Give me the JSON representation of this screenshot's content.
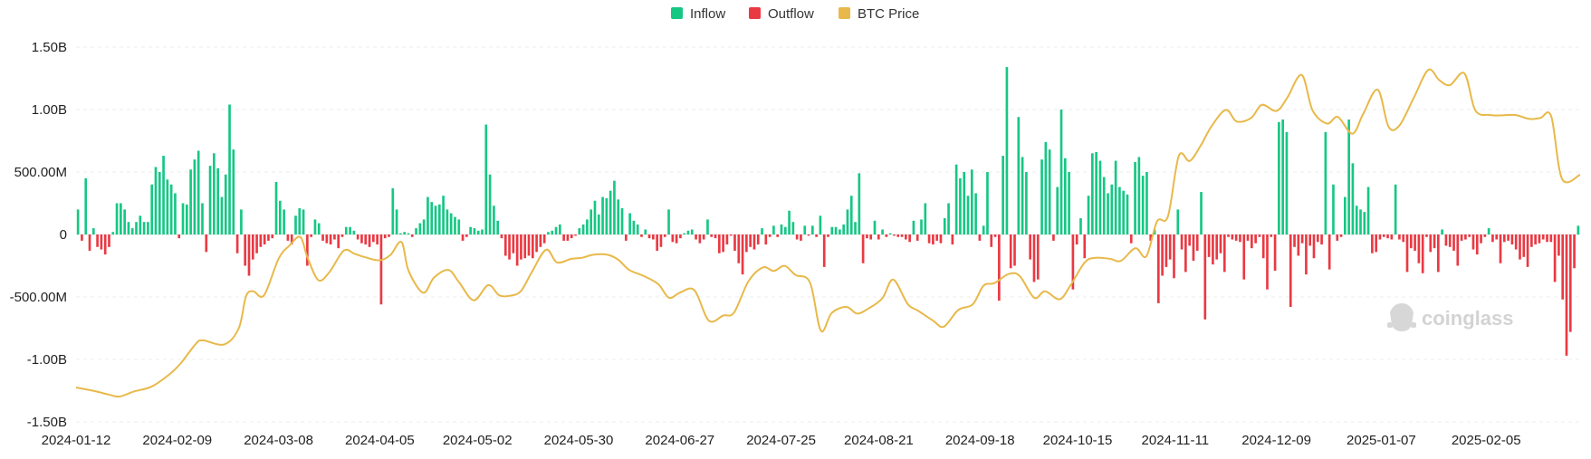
{
  "chart_data": {
    "type": "bar",
    "legend": {
      "placement": "top-center",
      "items": [
        {
          "key": "inflow",
          "label": "Inflow",
          "color": "#16c784"
        },
        {
          "key": "outflow",
          "label": "Outflow",
          "color": "#ea3943"
        },
        {
          "key": "btc_price",
          "label": "BTC Price",
          "color": "#e8b94a"
        }
      ]
    },
    "y_axis": {
      "ylim": [
        -1500000000,
        1500000000
      ],
      "tick_values": [
        1500000000,
        1000000000,
        500000000,
        0,
        -500000000,
        -1000000000,
        -1500000000
      ],
      "tick_labels": [
        "1.50B",
        "1.00B",
        "500.00M",
        "0",
        "-500.00M",
        "-1.00B",
        "-1.50B"
      ]
    },
    "x_axis": {
      "start": "2024-01-12",
      "end": "2025-03-03",
      "tick_labels": [
        "2024-01-12",
        "2024-02-09",
        "2024-03-08",
        "2024-04-05",
        "2024-05-02",
        "2024-05-30",
        "2024-06-27",
        "2024-07-25",
        "2024-08-21",
        "2024-09-18",
        "2024-10-15",
        "2024-11-11",
        "2024-12-09",
        "2025-01-07",
        "2025-02-05"
      ]
    },
    "grid": {
      "horizontal": true,
      "vertical": false
    },
    "watermark": "coinglass",
    "series": [
      {
        "name": "Inflow / Outflow",
        "type": "bar",
        "unit": "USD",
        "values": [
          200,
          -50,
          450,
          -130,
          50,
          -100,
          -120,
          -160,
          -100,
          20,
          250,
          250,
          200,
          100,
          50,
          100,
          150,
          100,
          100,
          400,
          540,
          500,
          630,
          440,
          400,
          330,
          -30,
          250,
          240,
          520,
          600,
          670,
          250,
          -140,
          550,
          650,
          530,
          300,
          480,
          1040,
          680,
          -150,
          200,
          -250,
          -330,
          -200,
          -150,
          -100,
          -80,
          -50,
          -30,
          420,
          270,
          200,
          -50,
          -80,
          150,
          210,
          200,
          -250,
          -20,
          120,
          90,
          -50,
          -70,
          -80,
          -40,
          -110,
          -20,
          60,
          60,
          30,
          -40,
          -70,
          -80,
          -100,
          -60,
          -80,
          -560,
          -30,
          -20,
          370,
          200,
          10,
          20,
          10,
          -20,
          50,
          90,
          120,
          300,
          260,
          230,
          240,
          310,
          200,
          170,
          140,
          120,
          -50,
          -20,
          60,
          50,
          30,
          40,
          880,
          480,
          230,
          110,
          -30,
          -170,
          -200,
          -150,
          -250,
          -200,
          -190,
          -170,
          -190,
          -140,
          -100,
          -70,
          20,
          30,
          60,
          80,
          -50,
          -50,
          -30,
          -10,
          50,
          80,
          120,
          200,
          270,
          160,
          300,
          290,
          350,
          430,
          280,
          210,
          -50,
          170,
          110,
          80,
          -20,
          40,
          -30,
          -40,
          -130,
          -100,
          -20,
          200,
          -60,
          -70,
          -30,
          10,
          30,
          40,
          -40,
          -70,
          -40,
          120,
          -20,
          -30,
          -150,
          -140,
          -80,
          -10,
          -130,
          -230,
          -320,
          -140,
          -100,
          -120,
          -80,
          50,
          -80,
          -20,
          70,
          -20,
          80,
          60,
          190,
          100,
          -40,
          -50,
          70,
          -10,
          70,
          -20,
          150,
          -260,
          -20,
          60,
          60,
          40,
          80,
          200,
          310,
          100,
          490,
          -230,
          -30,
          -40,
          110,
          -40,
          40,
          -20,
          10,
          -10,
          -20,
          -20,
          -40,
          -60,
          110,
          -50,
          120,
          250,
          -70,
          -80,
          -50,
          -70,
          130,
          250,
          -80,
          560,
          450,
          500,
          310,
          520,
          330,
          -50,
          70,
          500,
          -100,
          -20,
          -530,
          630,
          1340,
          -270,
          -250,
          940,
          620,
          500,
          -200,
          -380,
          -360,
          600,
          740,
          680,
          -50,
          380,
          1000,
          610,
          500,
          -440,
          -80,
          130,
          -190,
          310,
          650,
          660,
          590,
          460,
          330,
          400,
          590,
          380,
          350,
          320,
          -70,
          580,
          620,
          470,
          500,
          -50,
          40,
          -550,
          -330,
          -260,
          -200,
          -350,
          200,
          -120,
          -300,
          -90,
          -210,
          -130,
          340,
          -680,
          -180,
          -240,
          -200,
          -150,
          -300,
          -20,
          -40,
          -50,
          -60,
          -360,
          -50,
          -110,
          -70,
          -20,
          -190,
          -440,
          -20,
          -290,
          900,
          920,
          820,
          -580,
          -100,
          -170,
          -70,
          -320,
          -90,
          -190,
          -60,
          -80,
          820,
          -280,
          400,
          -50,
          -20,
          300,
          920,
          570,
          230,
          200,
          180,
          380,
          -150,
          -140,
          -40,
          -20,
          -30,
          -40,
          400,
          -40,
          -60,
          -300,
          -110,
          -130,
          -230,
          -310,
          -20,
          -140,
          -110,
          -300,
          40,
          -90,
          -100,
          -130,
          -250,
          -50,
          -40,
          -20,
          -120,
          -160,
          -70,
          -20,
          50,
          -60,
          -40,
          -230,
          -60,
          -50,
          -80,
          -120,
          -200,
          -180,
          -260,
          -100,
          -80,
          -70,
          -40,
          -60,
          -60,
          -380,
          -170,
          -520,
          -970,
          -780,
          -270,
          70
        ]
      },
      {
        "name": "BTC Price",
        "type": "line",
        "unit": "USD",
        "y_axis_shown": false,
        "x": [
          "2024-01-12",
          "2024-01-17",
          "2024-01-21",
          "2024-01-24",
          "2024-01-28",
          "2024-02-02",
          "2024-02-07",
          "2024-02-10",
          "2024-02-14",
          "2024-02-16",
          "2024-02-22",
          "2024-02-26",
          "2024-02-28",
          "2024-03-01",
          "2024-03-04",
          "2024-03-08",
          "2024-03-11",
          "2024-03-14",
          "2024-03-16",
          "2024-03-19",
          "2024-03-22",
          "2024-03-26",
          "2024-03-29",
          "2024-04-01",
          "2024-04-05",
          "2024-04-08",
          "2024-04-11",
          "2024-04-13",
          "2024-04-17",
          "2024-04-20",
          "2024-04-24",
          "2024-04-27",
          "2024-05-01",
          "2024-05-05",
          "2024-05-08",
          "2024-05-11",
          "2024-05-14",
          "2024-05-17",
          "2024-05-21",
          "2024-05-24",
          "2024-05-28",
          "2024-05-31",
          "2024-06-03",
          "2024-06-07",
          "2024-06-10",
          "2024-06-13",
          "2024-06-17",
          "2024-06-21",
          "2024-06-24",
          "2024-06-27",
          "2024-07-01",
          "2024-07-05",
          "2024-07-09",
          "2024-07-12",
          "2024-07-16",
          "2024-07-20",
          "2024-07-23",
          "2024-07-26",
          "2024-07-29",
          "2024-08-02",
          "2024-08-05",
          "2024-08-08",
          "2024-08-12",
          "2024-08-15",
          "2024-08-18",
          "2024-08-22",
          "2024-08-25",
          "2024-08-29",
          "2024-09-01",
          "2024-09-05",
          "2024-09-08",
          "2024-09-12",
          "2024-09-16",
          "2024-09-19",
          "2024-09-22",
          "2024-09-26",
          "2024-09-29",
          "2024-10-03",
          "2024-10-06",
          "2024-10-10",
          "2024-10-13",
          "2024-10-17",
          "2024-10-20",
          "2024-10-24",
          "2024-10-27",
          "2024-10-31",
          "2024-11-03",
          "2024-11-06",
          "2024-11-09",
          "2024-11-12",
          "2024-11-15",
          "2024-11-18",
          "2024-11-21",
          "2024-11-25",
          "2024-11-28",
          "2024-12-02",
          "2024-12-05",
          "2024-12-09",
          "2024-12-12",
          "2024-12-16",
          "2024-12-19",
          "2024-12-23",
          "2024-12-26",
          "2024-12-30",
          "2025-01-02",
          "2025-01-06",
          "2025-01-09",
          "2025-01-12",
          "2025-01-16",
          "2025-01-20",
          "2025-01-23",
          "2025-01-26",
          "2025-01-30",
          "2025-02-02",
          "2025-02-06",
          "2025-02-09",
          "2025-02-13",
          "2025-02-17",
          "2025-02-20",
          "2025-02-23",
          "2025-02-26",
          "2025-03-03"
        ],
        "values": [
          42800,
          42100,
          41400,
          41000,
          42000,
          43000,
          45500,
          47600,
          51300,
          52100,
          51300,
          54500,
          60800,
          61800,
          61000,
          68200,
          70800,
          72500,
          68500,
          64000,
          65500,
          69800,
          69200,
          68500,
          67900,
          69000,
          71500,
          65800,
          61500,
          64500,
          66000,
          63500,
          60000,
          63000,
          61000,
          60900,
          61800,
          65500,
          70000,
          67500,
          68200,
          68400,
          69000,
          69000,
          68000,
          66000,
          64800,
          63200,
          60500,
          61500,
          62000,
          56000,
          57000,
          57600,
          63800,
          66500,
          65800,
          66800,
          65000,
          63500,
          54000,
          57500,
          58700,
          57400,
          58300,
          60400,
          64100,
          59300,
          57900,
          56000,
          54800,
          58100,
          59200,
          62900,
          63400,
          65200,
          64800,
          60500,
          61800,
          60200,
          62900,
          67500,
          68400,
          68200,
          67800,
          70300,
          68700,
          75600,
          76600,
          88500,
          87500,
          90500,
          94300,
          97600,
          95300,
          96000,
          98600,
          97400,
          100000,
          104500,
          97500,
          94900,
          96200,
          92900,
          96800,
          101600,
          94300,
          94500,
          100000,
          105500,
          103500,
          102500,
          104800,
          97500,
          96600,
          96500,
          96600,
          95800,
          96000,
          96300,
          84000,
          84800
        ]
      }
    ]
  }
}
